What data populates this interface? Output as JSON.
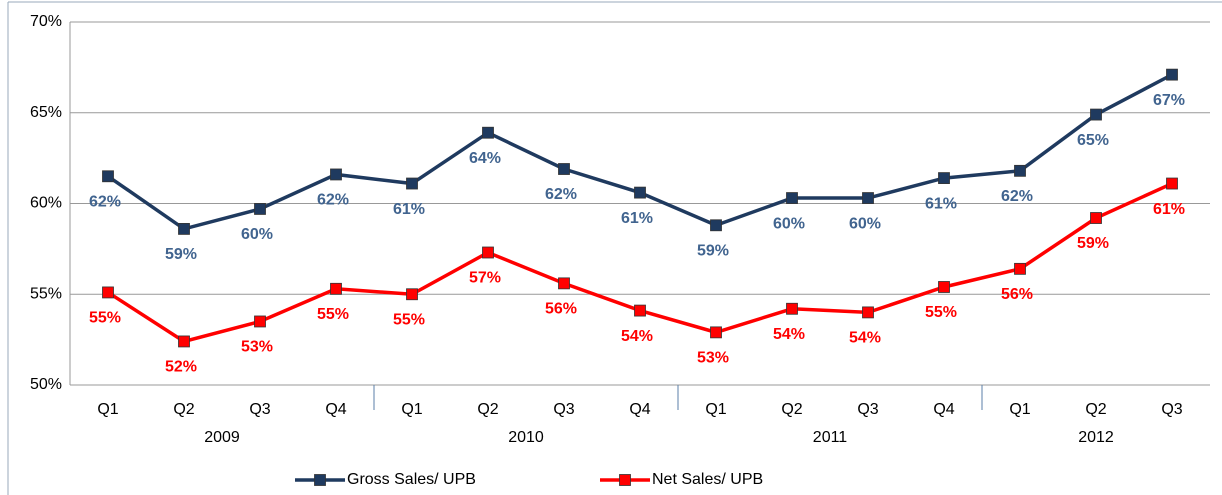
{
  "chart_data": {
    "type": "line",
    "categories": [
      "Q1",
      "Q2",
      "Q3",
      "Q4",
      "Q1",
      "Q2",
      "Q3",
      "Q4",
      "Q1",
      "Q2",
      "Q3",
      "Q4",
      "Q1",
      "Q2",
      "Q3"
    ],
    "category_groups": [
      "2009",
      "2010",
      "2011",
      "2012"
    ],
    "series": [
      {
        "name": "Gross Sales/ UPB",
        "color": "#1f3a5f",
        "label_color": "#41648f",
        "values": [
          61.5,
          58.6,
          59.7,
          61.6,
          61.1,
          63.9,
          61.9,
          60.6,
          58.8,
          60.3,
          60.3,
          61.4,
          61.8,
          64.9,
          67.1
        ],
        "value_labels": [
          "62%",
          "59%",
          "60%",
          "62%",
          "61%",
          "64%",
          "62%",
          "61%",
          "59%",
          "60%",
          "60%",
          "61%",
          "62%",
          "65%",
          "67%"
        ]
      },
      {
        "name": "Net Sales/ UPB",
        "color": "#ff0000",
        "label_color": "#ff0000",
        "values": [
          55.1,
          52.4,
          53.5,
          55.3,
          55.0,
          57.3,
          55.6,
          54.1,
          52.9,
          54.2,
          54.0,
          55.4,
          56.4,
          59.2,
          61.1
        ],
        "value_labels": [
          "55%",
          "52%",
          "53%",
          "55%",
          "55%",
          "57%",
          "56%",
          "54%",
          "53%",
          "54%",
          "54%",
          "55%",
          "56%",
          "59%",
          "61%"
        ]
      }
    ],
    "ylim": [
      50,
      70
    ],
    "yticks": [
      {
        "value": 50,
        "label": "50%"
      },
      {
        "value": 55,
        "label": "55%"
      },
      {
        "value": 60,
        "label": "60%"
      },
      {
        "value": 65,
        "label": "65%"
      },
      {
        "value": 70,
        "label": "70%"
      }
    ],
    "grid": true,
    "legend": "bottom"
  }
}
